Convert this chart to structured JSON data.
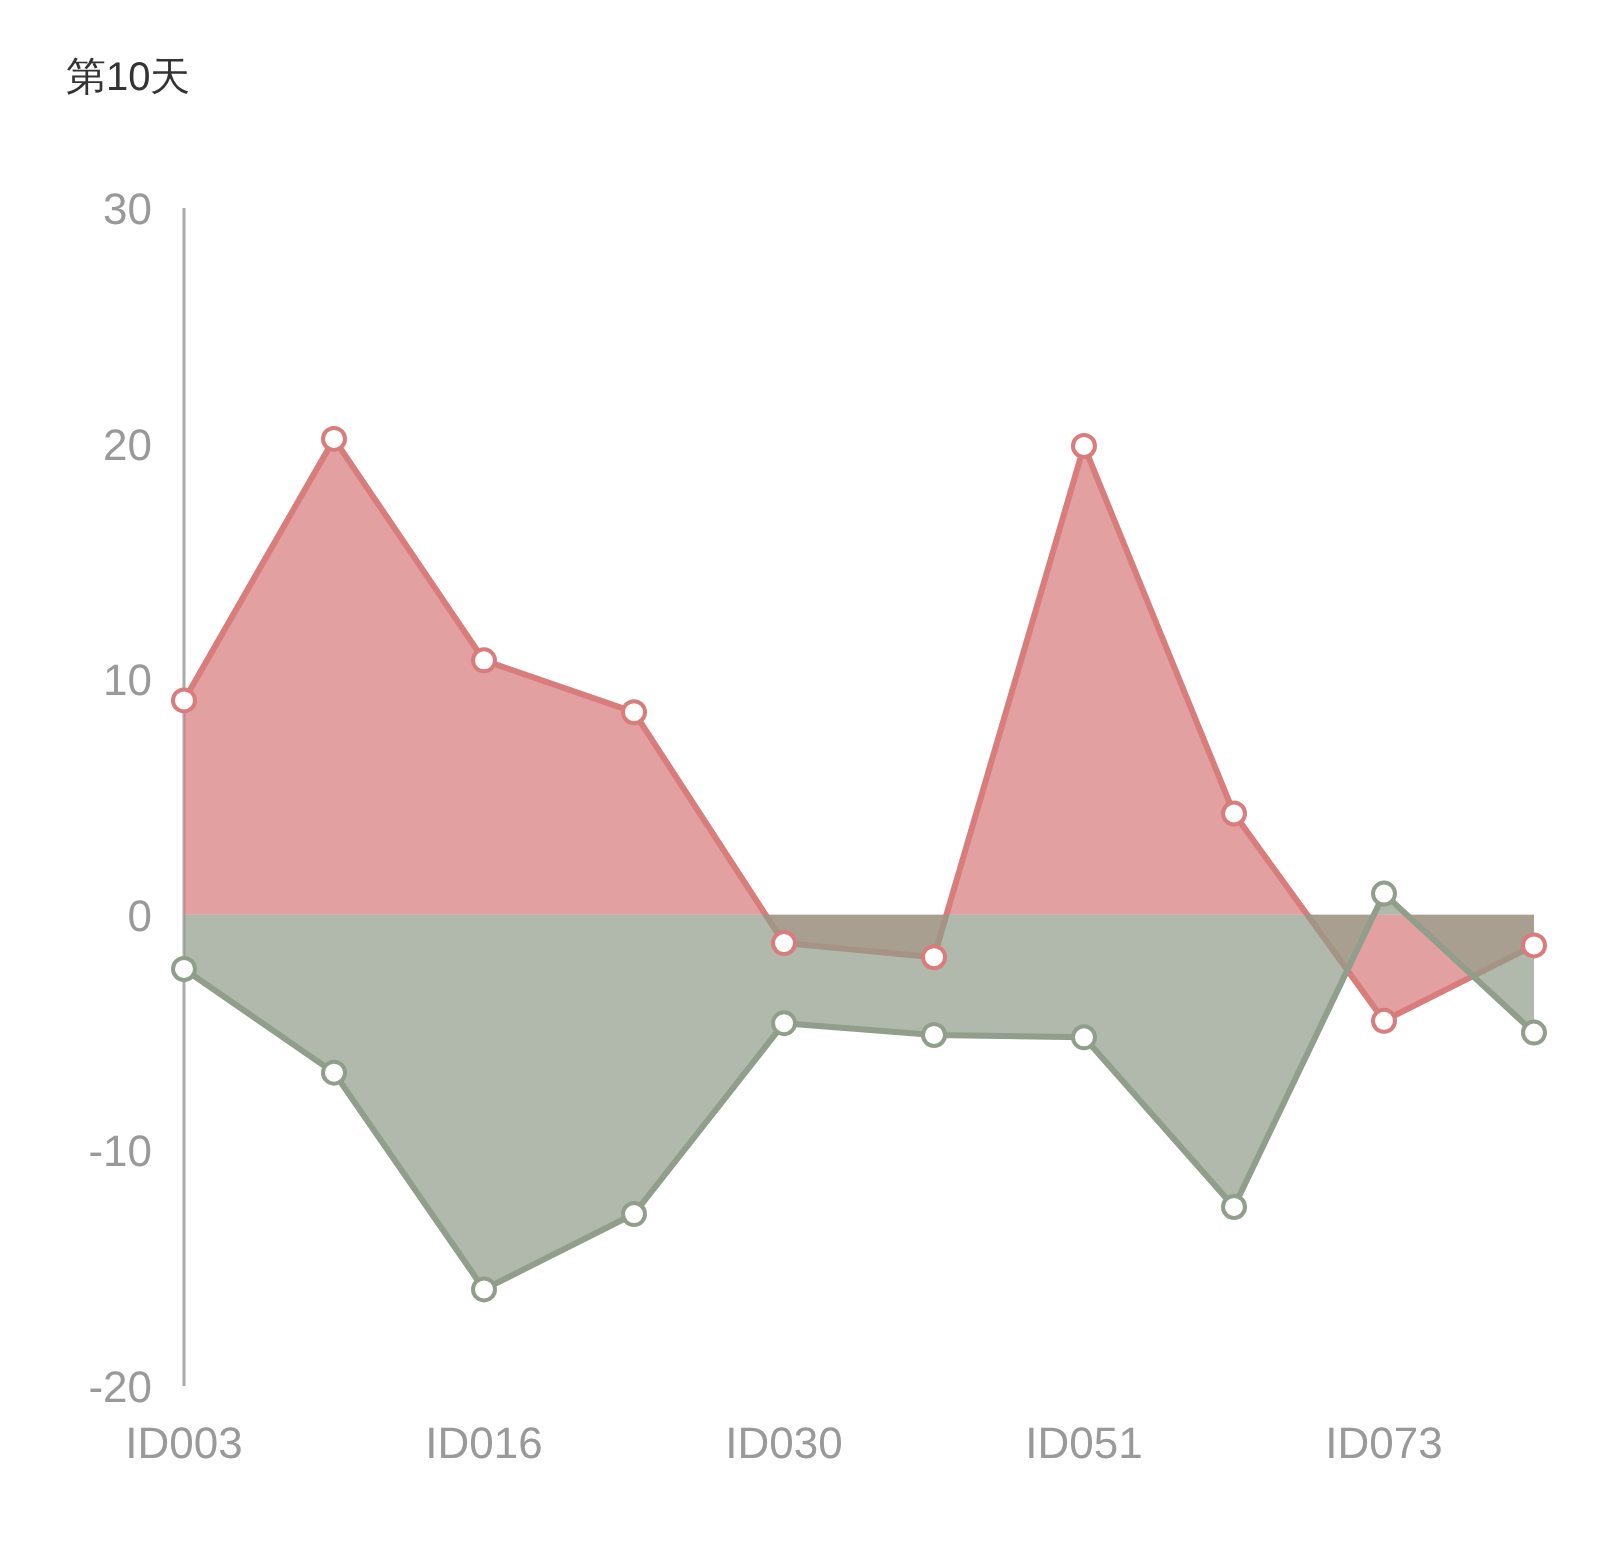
{
  "chart_data": {
    "type": "area",
    "title": "第10天",
    "categories": [
      "ID003",
      null,
      "ID016",
      null,
      "ID030",
      null,
      "ID051",
      null,
      "ID073",
      null
    ],
    "series": [
      {
        "color": "#d87c7c",
        "values": [
          9.1,
          20.2,
          10.8,
          8.6,
          -1.2,
          -1.8,
          19.9,
          4.3,
          -4.5,
          -1.3
        ]
      },
      {
        "color": "#919e8b",
        "values": [
          -2.3,
          -6.7,
          -15.9,
          -12.7,
          -4.6,
          -5.1,
          -5.2,
          -12.4,
          0.9,
          -5.0
        ]
      }
    ],
    "ylim": [
      -20,
      30
    ],
    "yticks": [
      -20,
      -10,
      0,
      10,
      20,
      30
    ],
    "marker": "circle",
    "grid": false
  }
}
